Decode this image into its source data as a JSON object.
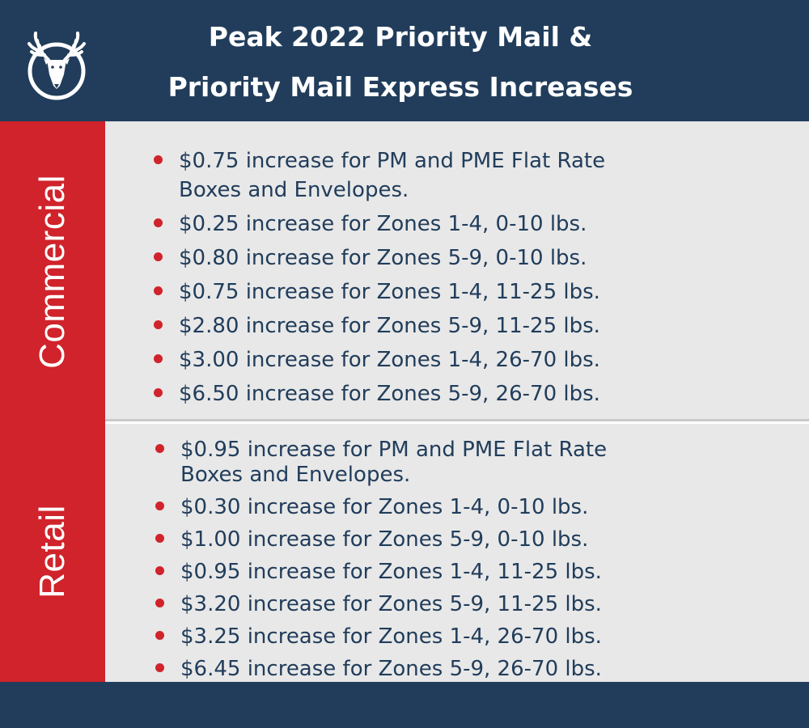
{
  "header": {
    "logo": "deer-head-logo",
    "title_line1": "Peak 2022 Priority Mail &",
    "title_line2": "Priority Mail Express Increases"
  },
  "colors": {
    "navy": "#213d5b",
    "red": "#d0232b",
    "panel": "#e8e8e8",
    "text": "#213d5b"
  },
  "commercial": {
    "label": "Commercial",
    "items": [
      {
        "line1": "$0.75 increase for PM and PME Flat Rate",
        "line2": "Boxes and Envelopes."
      },
      {
        "line1": "$0.25 increase for Zones 1-4, 0-10 lbs."
      },
      {
        "line1": "$0.80 increase for Zones 5-9, 0-10 lbs."
      },
      {
        "line1": "$0.75 increase for Zones 1-4, 11-25 lbs."
      },
      {
        "line1": "$2.80 increase for Zones 5-9, 11-25 lbs."
      },
      {
        "line1": "$3.00 increase for Zones 1-4, 26-70 lbs."
      },
      {
        "line1": "$6.50 increase for Zones 5-9, 26-70 lbs."
      }
    ]
  },
  "retail": {
    "label": "Retail",
    "items": [
      {
        "line1": "$0.95 increase for PM and PME Flat Rate",
        "line2": "Boxes and Envelopes."
      },
      {
        "line1": "$0.30 increase for Zones 1-4, 0-10 lbs."
      },
      {
        "line1": "$1.00 increase for Zones 5-9, 0-10 lbs."
      },
      {
        "line1": "$0.95 increase for Zones 1-4, 11-25 lbs."
      },
      {
        "line1": "$3.20 increase for Zones 5-9, 11-25 lbs."
      },
      {
        "line1": "$3.25 increase for Zones 1-4, 26-70 lbs."
      },
      {
        "line1": "$6.45 increase for Zones 5-9, 26-70 lbs."
      }
    ]
  }
}
